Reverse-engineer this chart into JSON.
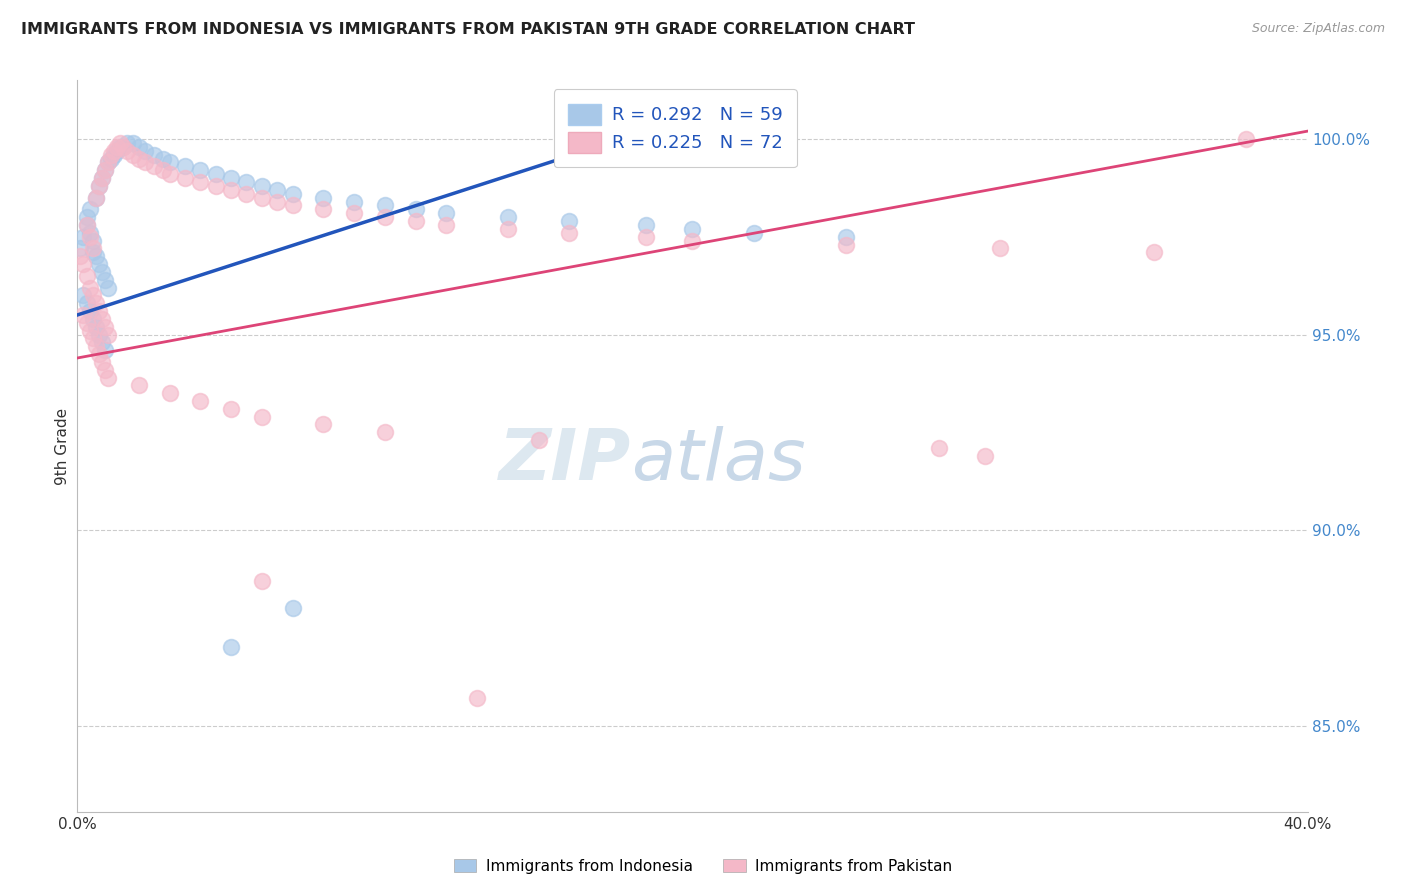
{
  "title": "IMMIGRANTS FROM INDONESIA VS IMMIGRANTS FROM PAKISTAN 9TH GRADE CORRELATION CHART",
  "source": "Source: ZipAtlas.com",
  "ylabel": "9th Grade",
  "xlim": [
    0.0,
    0.4
  ],
  "ylim": [
    0.828,
    1.015
  ],
  "yticks": [
    0.85,
    0.9,
    0.95,
    1.0
  ],
  "ytick_labels": [
    "85.0%",
    "90.0%",
    "95.0%",
    "100.0%"
  ],
  "xticks": [
    0.0,
    0.4
  ],
  "xtick_labels": [
    "0.0%",
    "40.0%"
  ],
  "r_indonesia": 0.292,
  "n_indonesia": 59,
  "r_pakistan": 0.225,
  "n_pakistan": 72,
  "color_indonesia": "#a8c8e8",
  "color_pakistan": "#f4b8c8",
  "line_color_indonesia": "#2255bb",
  "line_color_pakistan": "#dd4477",
  "legend1_label": "R = 0.292   N = 59",
  "legend2_label": "R = 0.225   N = 72",
  "bottom_legend1": "Immigrants from Indonesia",
  "bottom_legend2": "Immigrants from Pakistan",
  "watermark_zip": "ZIP",
  "watermark_atlas": "atlas",
  "blue_line_x": [
    0.0,
    0.185
  ],
  "blue_line_y": [
    0.955,
    1.002
  ],
  "pink_line_x": [
    0.0,
    0.4
  ],
  "pink_line_y": [
    0.944,
    1.002
  ],
  "indo_x": [
    0.001,
    0.002,
    0.003,
    0.003,
    0.004,
    0.004,
    0.005,
    0.005,
    0.006,
    0.006,
    0.007,
    0.007,
    0.008,
    0.008,
    0.009,
    0.009,
    0.01,
    0.01,
    0.011,
    0.012,
    0.013,
    0.014,
    0.015,
    0.016,
    0.018,
    0.02,
    0.022,
    0.025,
    0.028,
    0.03,
    0.035,
    0.04,
    0.045,
    0.05,
    0.055,
    0.06,
    0.065,
    0.07,
    0.08,
    0.09,
    0.1,
    0.11,
    0.12,
    0.14,
    0.16,
    0.185,
    0.2,
    0.22,
    0.25,
    0.002,
    0.003,
    0.004,
    0.005,
    0.006,
    0.007,
    0.008,
    0.009,
    0.05,
    0.07
  ],
  "indo_y": [
    0.972,
    0.975,
    0.978,
    0.98,
    0.982,
    0.976,
    0.974,
    0.971,
    0.985,
    0.97,
    0.988,
    0.968,
    0.99,
    0.966,
    0.992,
    0.964,
    0.994,
    0.962,
    0.995,
    0.996,
    0.997,
    0.998,
    0.998,
    0.999,
    0.999,
    0.998,
    0.997,
    0.996,
    0.995,
    0.994,
    0.993,
    0.992,
    0.991,
    0.99,
    0.989,
    0.988,
    0.987,
    0.986,
    0.985,
    0.984,
    0.983,
    0.982,
    0.981,
    0.98,
    0.979,
    0.978,
    0.977,
    0.976,
    0.975,
    0.96,
    0.958,
    0.956,
    0.954,
    0.952,
    0.95,
    0.948,
    0.946,
    0.87,
    0.88
  ],
  "pak_x": [
    0.001,
    0.002,
    0.003,
    0.003,
    0.004,
    0.004,
    0.005,
    0.005,
    0.006,
    0.006,
    0.007,
    0.007,
    0.008,
    0.008,
    0.009,
    0.009,
    0.01,
    0.01,
    0.011,
    0.012,
    0.013,
    0.014,
    0.015,
    0.016,
    0.018,
    0.02,
    0.022,
    0.025,
    0.028,
    0.03,
    0.035,
    0.04,
    0.045,
    0.05,
    0.055,
    0.06,
    0.065,
    0.07,
    0.08,
    0.09,
    0.1,
    0.11,
    0.12,
    0.14,
    0.16,
    0.185,
    0.2,
    0.25,
    0.3,
    0.35,
    0.38,
    0.002,
    0.003,
    0.004,
    0.005,
    0.006,
    0.007,
    0.008,
    0.009,
    0.01,
    0.02,
    0.03,
    0.04,
    0.05,
    0.06,
    0.08,
    0.1,
    0.15,
    0.28,
    0.295,
    0.06,
    0.13
  ],
  "pak_y": [
    0.97,
    0.968,
    0.965,
    0.978,
    0.962,
    0.975,
    0.96,
    0.972,
    0.958,
    0.985,
    0.988,
    0.956,
    0.99,
    0.954,
    0.952,
    0.992,
    0.95,
    0.994,
    0.996,
    0.997,
    0.998,
    0.999,
    0.998,
    0.997,
    0.996,
    0.995,
    0.994,
    0.993,
    0.992,
    0.991,
    0.99,
    0.989,
    0.988,
    0.987,
    0.986,
    0.985,
    0.984,
    0.983,
    0.982,
    0.981,
    0.98,
    0.979,
    0.978,
    0.977,
    0.976,
    0.975,
    0.974,
    0.973,
    0.972,
    0.971,
    1.0,
    0.955,
    0.953,
    0.951,
    0.949,
    0.947,
    0.945,
    0.943,
    0.941,
    0.939,
    0.937,
    0.935,
    0.933,
    0.931,
    0.929,
    0.927,
    0.925,
    0.923,
    0.921,
    0.919,
    0.887,
    0.857
  ]
}
